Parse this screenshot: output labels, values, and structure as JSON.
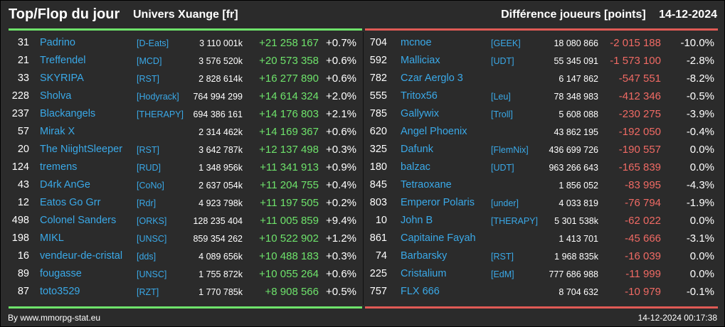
{
  "header": {
    "title": "Top/Flop du jour",
    "universe": "Univers Xuange [fr]",
    "metric": "Différence joueurs [points]",
    "date": "14-12-2024"
  },
  "colors": {
    "gain": "#6ee36b",
    "loss": "#f06a64",
    "name": "#3aa9e8",
    "background": "#2b2b2b"
  },
  "top": [
    {
      "rank": "31",
      "name": "Padrino",
      "ally": "[D-Eats]",
      "points": "3 110 001k",
      "delta": "+21 258 167",
      "pct": "+0.7%"
    },
    {
      "rank": "21",
      "name": "Treffendel",
      "ally": "[MCD]",
      "points": "3 576 520k",
      "delta": "+20 573 358",
      "pct": "+0.6%"
    },
    {
      "rank": "33",
      "name": "SKYRIPA",
      "ally": "[RST]",
      "points": "2 828 614k",
      "delta": "+16 277 890",
      "pct": "+0.6%"
    },
    {
      "rank": "228",
      "name": "Sholva",
      "ally": "[Hodyrack]",
      "points": "764 994 299",
      "delta": "+14 614 324",
      "pct": "+2.0%"
    },
    {
      "rank": "237",
      "name": "Blackangels",
      "ally": "[THERAPY]",
      "points": "694 386 161",
      "delta": "+14 176 803",
      "pct": "+2.1%"
    },
    {
      "rank": "57",
      "name": "Mirak X",
      "ally": "",
      "points": "2 314 462k",
      "delta": "+14 169 367",
      "pct": "+0.6%"
    },
    {
      "rank": "20",
      "name": "The NiightSleeper",
      "ally": "[RST]",
      "points": "3 642 787k",
      "delta": "+12 137 498",
      "pct": "+0.3%"
    },
    {
      "rank": "124",
      "name": "tremens",
      "ally": "[RUD]",
      "points": "1 348 956k",
      "delta": "+11 341 913",
      "pct": "+0.9%"
    },
    {
      "rank": "43",
      "name": "D4rk AnGe",
      "ally": "[CoNo]",
      "points": "2 637 054k",
      "delta": "+11 204 755",
      "pct": "+0.4%"
    },
    {
      "rank": "12",
      "name": "Eatos Go Grr",
      "ally": "[Rdr]",
      "points": "4 923 798k",
      "delta": "+11 197 505",
      "pct": "+0.2%"
    },
    {
      "rank": "498",
      "name": "Colonel Sanders",
      "ally": "[ORKS]",
      "points": "128 235 404",
      "delta": "+11 005 859",
      "pct": "+9.4%"
    },
    {
      "rank": "198",
      "name": "MIKL",
      "ally": "[UNSC]",
      "points": "859 354 262",
      "delta": "+10 522 902",
      "pct": "+1.2%"
    },
    {
      "rank": "16",
      "name": "vendeur-de-cristal",
      "ally": "[dds]",
      "points": "4 089 656k",
      "delta": "+10 488 183",
      "pct": "+0.3%"
    },
    {
      "rank": "89",
      "name": "fougasse",
      "ally": "[UNSC]",
      "points": "1 755 872k",
      "delta": "+10 055 264",
      "pct": "+0.6%"
    },
    {
      "rank": "87",
      "name": "toto3529",
      "ally": "[RZT]",
      "points": "1 770 785k",
      "delta": "+8 908 566",
      "pct": "+0.5%"
    }
  ],
  "flop": [
    {
      "rank": "704",
      "name": "mcnoe",
      "ally": "[GEEK]",
      "points": "18 080 866",
      "delta": "-2 015 188",
      "pct": "-10.0%"
    },
    {
      "rank": "592",
      "name": "Malliciax",
      "ally": "[UDT]",
      "points": "55 345 091",
      "delta": "-1 573 100",
      "pct": "-2.8%"
    },
    {
      "rank": "782",
      "name": "Czar Aerglo 3",
      "ally": "",
      "points": "6 147 862",
      "delta": "-547 551",
      "pct": "-8.2%"
    },
    {
      "rank": "555",
      "name": "Tritox56",
      "ally": "[Leu]",
      "points": "78 348 983",
      "delta": "-412 346",
      "pct": "-0.5%"
    },
    {
      "rank": "785",
      "name": "Gallywix",
      "ally": "[Troll]",
      "points": "5 608 088",
      "delta": "-230 275",
      "pct": "-3.9%"
    },
    {
      "rank": "620",
      "name": "Angel Phoenix",
      "ally": "",
      "points": "43 862 195",
      "delta": "-192 050",
      "pct": "-0.4%"
    },
    {
      "rank": "325",
      "name": "Dafunk",
      "ally": "[FlemNix]",
      "points": "436 699 726",
      "delta": "-190 557",
      "pct": "0.0%"
    },
    {
      "rank": "180",
      "name": "balzac",
      "ally": "[UDT]",
      "points": "963 266 643",
      "delta": "-165 839",
      "pct": "0.0%"
    },
    {
      "rank": "845",
      "name": "Tetraoxane",
      "ally": "",
      "points": "1 856 052",
      "delta": "-83 995",
      "pct": "-4.3%"
    },
    {
      "rank": "803",
      "name": "Emperor Polaris",
      "ally": "[under]",
      "points": "4 033 819",
      "delta": "-76 794",
      "pct": "-1.9%"
    },
    {
      "rank": "10",
      "name": "John B",
      "ally": "[THERAPY]",
      "points": "5 301 538k",
      "delta": "-62 022",
      "pct": "0.0%"
    },
    {
      "rank": "861",
      "name": "Capitaine Fayah",
      "ally": "",
      "points": "1 413 701",
      "delta": "-45 666",
      "pct": "-3.1%"
    },
    {
      "rank": "74",
      "name": "Barbarsky",
      "ally": "[RST]",
      "points": "1 968 835k",
      "delta": "-16 039",
      "pct": "0.0%"
    },
    {
      "rank": "225",
      "name": "Cristalium",
      "ally": "[EdM]",
      "points": "777 686 988",
      "delta": "-11 999",
      "pct": "0.0%"
    },
    {
      "rank": "757",
      "name": "FLX 666",
      "ally": "",
      "points": "8 704 632",
      "delta": "-10 979",
      "pct": "-0.1%"
    }
  ],
  "footer": {
    "source": "By www.mmorpg-stat.eu",
    "timestamp": "14-12-2024 00:17:38"
  }
}
